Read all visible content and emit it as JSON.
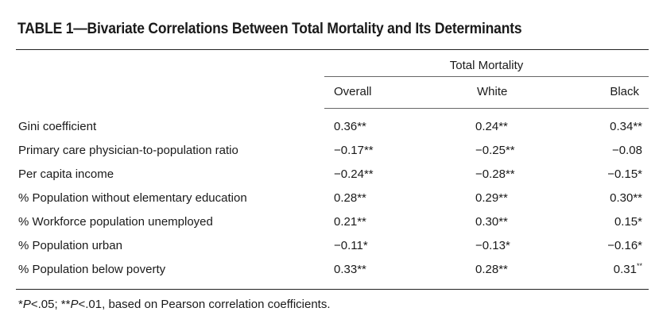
{
  "title": "TABLE 1—Bivariate Correlations Between Total Mortality and Its Determinants",
  "group_header": "Total Mortality",
  "columns": [
    "Overall",
    "White",
    "Black"
  ],
  "rows": [
    {
      "label": "Gini coefficient",
      "overall": "0.36**",
      "white": "0.24**",
      "black": "0.34**",
      "black_sup": ""
    },
    {
      "label": "Primary care physician-to-population ratio",
      "overall": "−0.17**",
      "white": "−0.25**",
      "black": "−0.08",
      "black_sup": ""
    },
    {
      "label": "Per capita income",
      "overall": "−0.24**",
      "white": "−0.28**",
      "black": "−0.15*",
      "black_sup": ""
    },
    {
      "label": "% Population without elementary education",
      "overall": "0.28**",
      "white": "0.29**",
      "black": "0.30**",
      "black_sup": ""
    },
    {
      "label": "% Workforce population unemployed",
      "overall": "0.21**",
      "white": "0.30**",
      "black": "0.15*",
      "black_sup": ""
    },
    {
      "label": "% Population urban",
      "overall": "−0.11*",
      "white": "−0.13*",
      "black": "−0.16*",
      "black_sup": ""
    },
    {
      "label": "% Population below poverty",
      "overall": "0.33**",
      "white": "0.28**",
      "black": "0.31",
      "black_sup": "**"
    }
  ],
  "footnote": {
    "p1_prefix": "*",
    "p1_letter": "P",
    "p1_rest": "<.05; **",
    "p2_letter": "P",
    "p2_rest": "<.01, based on Pearson correlation coefficients."
  }
}
